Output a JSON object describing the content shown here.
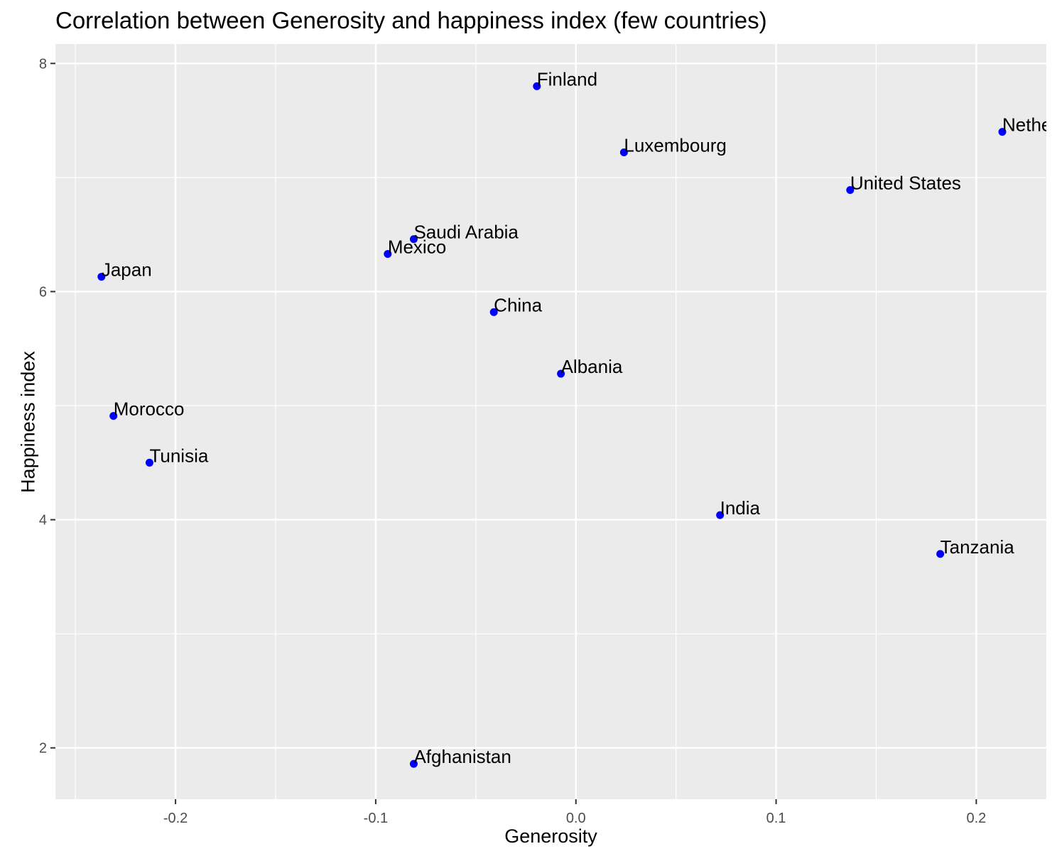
{
  "chart_data": {
    "type": "scatter",
    "title": "Correlation between Generosity and happiness index (few countries)",
    "xlabel": "Generosity",
    "ylabel": "Happiness index",
    "xlim": [
      -0.26,
      0.235
    ],
    "ylim": [
      1.55,
      8.17
    ],
    "x_major_ticks": [
      -0.2,
      -0.1,
      0.0,
      0.1,
      0.2
    ],
    "x_tick_labels": [
      "-0.2",
      "-0.1",
      "0.0",
      "0.1",
      "0.2"
    ],
    "x_minor_ticks": [
      -0.25,
      -0.15,
      -0.05,
      0.05,
      0.15
    ],
    "y_major_ticks": [
      2,
      4,
      6,
      8
    ],
    "y_tick_labels": [
      "2",
      "4",
      "6",
      "8"
    ],
    "y_minor_ticks": [
      3,
      5,
      7
    ],
    "grid": true,
    "point_color": "#0000ff",
    "panel_background": "#ebebeb",
    "grid_color": "#ffffff",
    "points": [
      {
        "label": "Finland",
        "x": -0.0195,
        "y": 7.8
      },
      {
        "label": "Netherlands",
        "x": 0.213,
        "y": 7.4
      },
      {
        "label": "Luxembourg",
        "x": 0.024,
        "y": 7.22
      },
      {
        "label": "United States",
        "x": 0.137,
        "y": 6.89
      },
      {
        "label": "Saudi Arabia",
        "x": -0.081,
        "y": 6.46
      },
      {
        "label": "Mexico",
        "x": -0.094,
        "y": 6.33
      },
      {
        "label": "Japan",
        "x": -0.237,
        "y": 6.13
      },
      {
        "label": "China",
        "x": -0.041,
        "y": 5.82
      },
      {
        "label": "Albania",
        "x": -0.0075,
        "y": 5.28
      },
      {
        "label": "Morocco",
        "x": -0.231,
        "y": 4.91
      },
      {
        "label": "Tunisia",
        "x": -0.213,
        "y": 4.5
      },
      {
        "label": "India",
        "x": 0.072,
        "y": 4.04
      },
      {
        "label": "Tanzania",
        "x": 0.182,
        "y": 3.7
      },
      {
        "label": "Afghanistan",
        "x": -0.081,
        "y": 1.86
      }
    ]
  }
}
